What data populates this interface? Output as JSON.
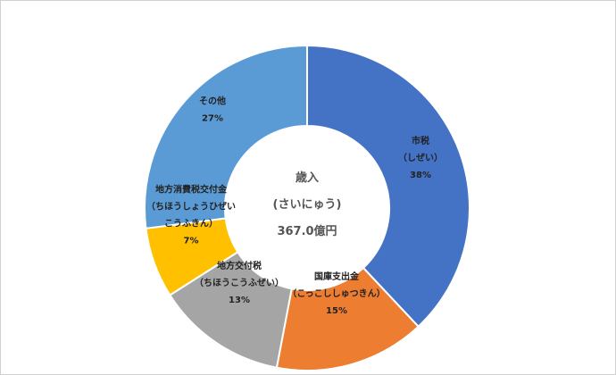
{
  "chart_data": {
    "type": "pie",
    "donut": true,
    "start_angle_deg": 0,
    "direction": "clockwise",
    "center_label": {
      "line1": "歳入",
      "line2": "(さいにゅう)",
      "line3": "367.0億円"
    },
    "slices": [
      {
        "name": "市税",
        "reading": "（しぜい）",
        "value": 38,
        "value_label": "38%",
        "color": "#4472c4"
      },
      {
        "name": "国庫支出金",
        "reading": "（こっこししゅつきん）",
        "value": 15,
        "value_label": "15%",
        "color": "#ed7d31"
      },
      {
        "name": "地方交付税",
        "reading": "（ちほうこうふぜい）",
        "value": 13,
        "value_label": "13%",
        "color": "#a5a5a5"
      },
      {
        "name": "地方消費税交付金",
        "reading": "（ちほうしょうひぜい\nこうふきん）",
        "value": 7,
        "value_label": "7%",
        "color": "#ffc000"
      },
      {
        "name": "その他",
        "reading": "",
        "value": 27,
        "value_label": "27%",
        "color": "#5b9bd5"
      }
    ]
  }
}
